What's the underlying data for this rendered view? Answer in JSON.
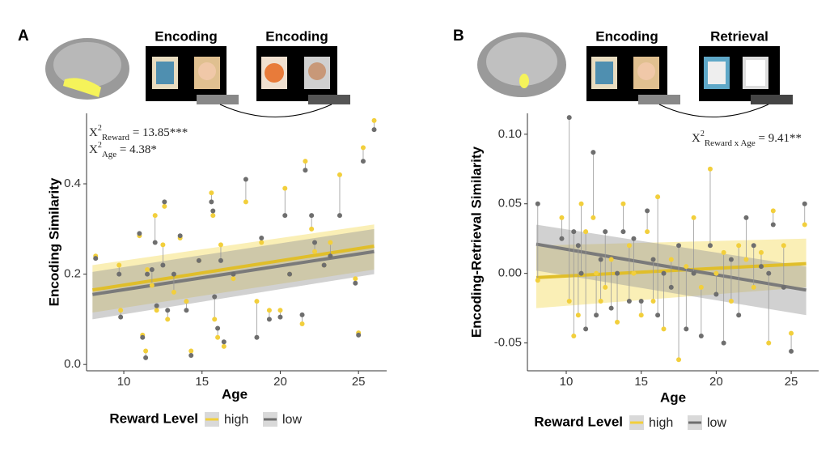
{
  "chart_data": [
    {
      "type": "scatter",
      "panel": "A",
      "images": [
        "Encoding",
        "Encoding"
      ],
      "xlabel": "Age",
      "ylabel": "Encoding Similarity",
      "annotations": [
        {
          "base": "X",
          "sup": "2",
          "sub": "Reward",
          "rest": " = 13.85***"
        },
        {
          "base": "X",
          "sup": "2",
          "sub": "Age",
          "rest": " = 4.38*"
        }
      ],
      "legend_title": "Reward Level",
      "xlim": [
        7.62,
        26.8
      ],
      "xticks": [
        10,
        15,
        20,
        25
      ],
      "ylim": [
        -0.014,
        0.556
      ],
      "yticks": [
        {
          "value": 0,
          "label": "0.0"
        },
        0.2,
        0.4
      ],
      "x": [
        8.2,
        9.7,
        9.8,
        11.0,
        11.2,
        11.4,
        11.5,
        11.8,
        12.0,
        12.1,
        12.5,
        12.6,
        12.8,
        13.2,
        13.6,
        14.0,
        14.3,
        14.8,
        15.6,
        15.7,
        15.8,
        16.0,
        16.2,
        16.4,
        17.0,
        17.8,
        18.5,
        18.8,
        19.3,
        20.0,
        20.3,
        20.6,
        21.4,
        21.6,
        22.0,
        22.2,
        22.8,
        23.2,
        23.8,
        24.8,
        25.0,
        25.3,
        26.0
      ],
      "series": [
        {
          "name": "high",
          "color": "#f2cf3c",
          "values": [
            0.24,
            0.22,
            0.12,
            0.285,
            0.065,
            0.03,
            0.21,
            0.175,
            0.33,
            0.12,
            0.265,
            0.35,
            0.1,
            0.16,
            0.28,
            0.14,
            0.03,
            0.23,
            0.38,
            0.33,
            0.1,
            0.06,
            0.265,
            0.04,
            0.19,
            0.36,
            0.14,
            0.27,
            0.12,
            0.12,
            0.39,
            0.2,
            0.09,
            0.45,
            0.3,
            0.25,
            0.22,
            0.27,
            0.42,
            0.19,
            0.07,
            0.48,
            0.54
          ],
          "fit": {
            "x": [
              8,
              26
            ],
            "values": [
              0.165,
              0.262
            ],
            "lower": [
              0.115,
              0.21
            ],
            "upper": [
              0.22,
              0.31
            ]
          }
        },
        {
          "name": "low",
          "color": "#6e6e6e",
          "values": [
            0.235,
            0.2,
            0.105,
            0.29,
            0.06,
            0.015,
            0.2,
            0.21,
            0.27,
            0.13,
            0.22,
            0.36,
            0.12,
            0.2,
            0.285,
            0.12,
            0.02,
            0.23,
            0.36,
            0.34,
            0.15,
            0.08,
            0.23,
            0.05,
            0.2,
            0.41,
            0.06,
            0.28,
            0.1,
            0.105,
            0.33,
            0.2,
            0.11,
            0.43,
            0.33,
            0.27,
            0.22,
            0.24,
            0.33,
            0.18,
            0.065,
            0.45,
            0.52
          ],
          "fit": {
            "x": [
              8,
              26
            ],
            "values": [
              0.155,
              0.25
            ],
            "lower": [
              0.1,
              0.2
            ],
            "upper": [
              0.205,
              0.3
            ]
          }
        }
      ]
    },
    {
      "type": "scatter",
      "panel": "B",
      "images": [
        "Encoding",
        "Retrieval"
      ],
      "xlabel": "Age",
      "ylabel": "Encoding-Retrieval Similarity",
      "annotations": [
        {
          "base": "X",
          "sup": "2",
          "sub": "Reward x Age",
          "rest": " = 9.41**"
        }
      ],
      "legend_title": "Reward Level",
      "xlim": [
        7.41,
        26.83
      ],
      "xticks": [
        10,
        15,
        20,
        25
      ],
      "ylim": [
        -0.07,
        0.115
      ],
      "yticks": [
        -0.05,
        {
          "value": 0,
          "label": "0.00"
        },
        0.05,
        {
          "value": 0.1,
          "label": "0.10"
        }
      ],
      "x": [
        8.1,
        9.7,
        10.2,
        10.5,
        10.8,
        11.0,
        11.3,
        11.8,
        12.0,
        12.3,
        12.6,
        13.0,
        13.4,
        13.8,
        14.2,
        14.5,
        15.0,
        15.4,
        15.8,
        16.1,
        16.5,
        17.0,
        17.5,
        18.0,
        18.5,
        19.0,
        19.6,
        20.0,
        20.5,
        21.0,
        21.5,
        22.0,
        22.5,
        23.0,
        23.5,
        23.8,
        24.5,
        25.0,
        25.9
      ],
      "series": [
        {
          "name": "high",
          "color": "#f2cf3c",
          "values": [
            -0.005,
            0.04,
            -0.02,
            -0.045,
            -0.03,
            0.05,
            0.03,
            0.04,
            0.0,
            -0.02,
            -0.01,
            0.01,
            -0.035,
            0.05,
            0.02,
            0.0,
            -0.03,
            0.03,
            -0.02,
            0.055,
            -0.04,
            0.01,
            -0.062,
            0.005,
            0.04,
            -0.01,
            0.075,
            0.0,
            0.015,
            -0.02,
            0.02,
            0.01,
            -0.01,
            0.015,
            -0.05,
            0.045,
            0.02,
            -0.043,
            0.035
          ],
          "fit": {
            "x": [
              8,
              26
            ],
            "values": [
              -0.003,
              0.007
            ],
            "lower": [
              -0.025,
              -0.01
            ],
            "upper": [
              0.02,
              0.025
            ]
          }
        },
        {
          "name": "low",
          "color": "#6e6e6e",
          "values": [
            0.05,
            0.025,
            0.112,
            0.03,
            0.02,
            0.0,
            -0.04,
            0.087,
            -0.03,
            0.01,
            0.03,
            -0.025,
            0.0,
            0.03,
            -0.02,
            0.025,
            -0.02,
            0.045,
            0.01,
            -0.03,
            0.0,
            -0.01,
            0.02,
            -0.04,
            0.0,
            -0.045,
            0.02,
            -0.015,
            -0.05,
            0.01,
            -0.03,
            0.04,
            0.02,
            0.005,
            0.0,
            0.035,
            -0.01,
            -0.056,
            0.05
          ],
          "fit": {
            "x": [
              8,
              26
            ],
            "values": [
              0.021,
              -0.012
            ],
            "lower": [
              0.002,
              -0.03
            ],
            "upper": [
              0.035,
              0.005
            ]
          }
        }
      ]
    }
  ]
}
